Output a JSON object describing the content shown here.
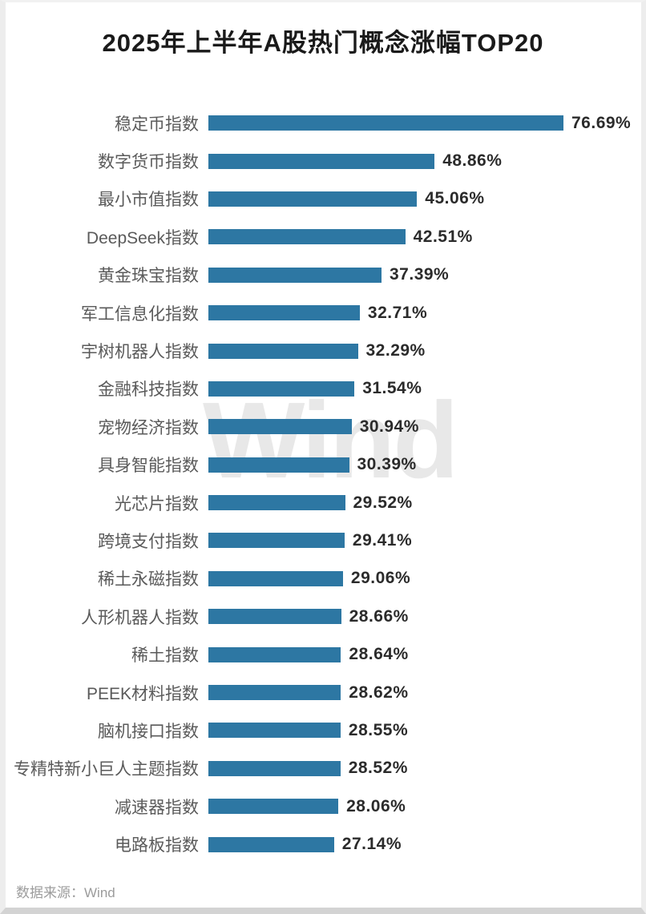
{
  "page": {
    "title": "2025年上半年A股热门概念涨幅TOP20",
    "source": "数据来源：Wind",
    "watermark": "Wind"
  },
  "colors": {
    "bar": "#2d77a3",
    "title": "#1a1a1a",
    "category": "#5a5a5a",
    "value": "#2b2b2b",
    "watermark": "#e8e8e8",
    "source": "#9c9c9c",
    "background": "#ffffff"
  },
  "chart_data": {
    "type": "bar",
    "orientation": "horizontal",
    "title": "2025年上半年A股热门概念涨幅TOP20",
    "categories": [
      "稳定币指数",
      "数字货币指数",
      "最小市值指数",
      "DeepSeek指数",
      "黄金珠宝指数",
      "军工信息化指数",
      "宇树机器人指数",
      "金融科技指数",
      "宠物经济指数",
      "具身智能指数",
      "光芯片指数",
      "跨境支付指数",
      "稀土永磁指数",
      "人形机器人指数",
      "稀土指数",
      "PEEK材料指数",
      "脑机接口指数",
      "专精特新小巨人主题指数",
      "减速器指数",
      "电路板指数"
    ],
    "values": [
      76.69,
      48.86,
      45.06,
      42.51,
      37.39,
      32.71,
      32.29,
      31.54,
      30.94,
      30.39,
      29.52,
      29.41,
      29.06,
      28.66,
      28.64,
      28.62,
      28.55,
      28.52,
      28.06,
      27.14
    ],
    "value_suffix": "%",
    "value_decimals": 2,
    "xlim": [
      0,
      80
    ],
    "grid": false,
    "legend": false,
    "sort": "descending",
    "source_note": "数据来源：Wind",
    "watermark": "Wind"
  }
}
